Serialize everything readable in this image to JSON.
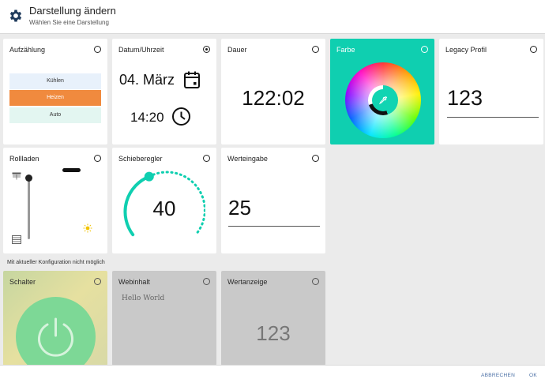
{
  "header": {
    "title": "Darstellung ändern",
    "subtitle": "Wählen Sie eine Darstellung"
  },
  "tiles": {
    "aufzaehlung": {
      "label": "Aufzählung",
      "options": [
        "Kühlen",
        "Heizen",
        "Auto"
      ],
      "selected": "Heizen"
    },
    "datum": {
      "label": "Datum/Uhrzeit",
      "date": "04. März",
      "time": "14:20",
      "checked": true
    },
    "dauer": {
      "label": "Dauer",
      "value": "122:02"
    },
    "farbe": {
      "label": "Farbe"
    },
    "legacy": {
      "label": "Legacy Profil",
      "value": "123"
    },
    "rollladen": {
      "label": "Rollladen",
      "level": 0.08
    },
    "schieberegler": {
      "label": "Schieberegler",
      "value": "40"
    },
    "werteingabe": {
      "label": "Werteingabe",
      "value": "25"
    },
    "schalter": {
      "label": "Schalter"
    },
    "webinhalt": {
      "label": "Webinhalt",
      "content": "Hello World"
    },
    "wertanzeige": {
      "label": "Wertanzeige",
      "value": "123"
    }
  },
  "section_note": "Mit aktueller Konfiguration nicht möglich",
  "footer": {
    "cancel": "ABBRECHEN",
    "ok": "OK"
  },
  "colors": {
    "accent": "#0fcfb0",
    "orange": "#f08a3e",
    "green": "#6fd79a"
  }
}
